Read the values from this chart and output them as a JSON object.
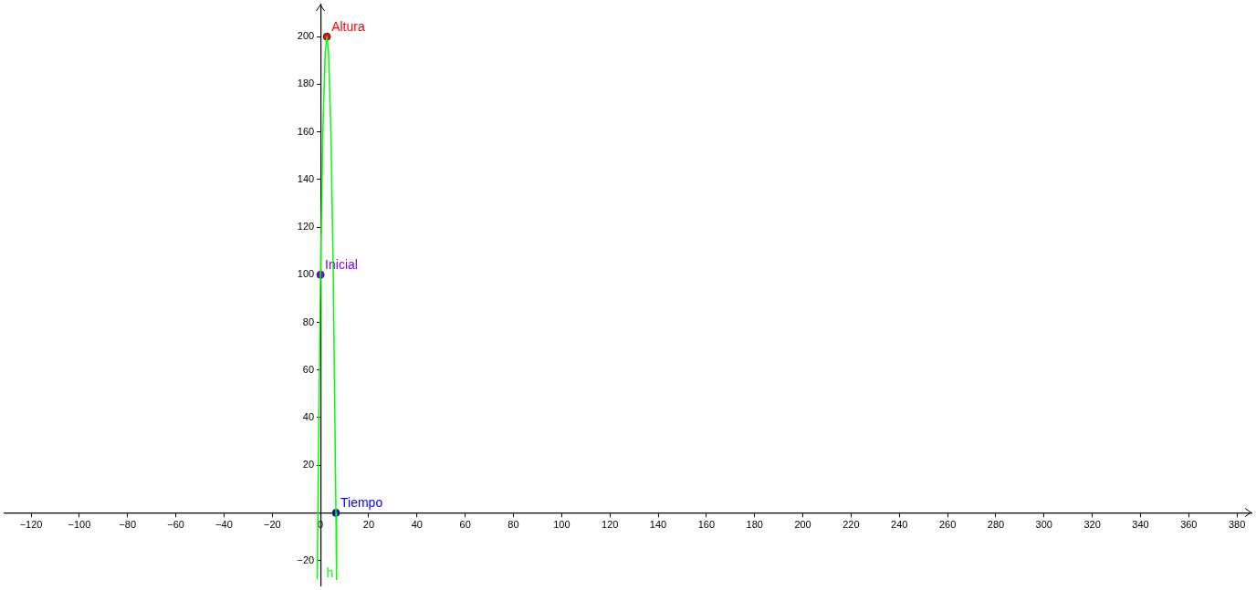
{
  "chart_data": {
    "type": "line",
    "xlim": [
      -131,
      386
    ],
    "ylim": [
      -30.5,
      213.5
    ],
    "xticks": [
      {
        "value": -120,
        "label": "−120"
      },
      {
        "value": -100,
        "label": "−100"
      },
      {
        "value": -80,
        "label": "−80"
      },
      {
        "value": -60,
        "label": "−60"
      },
      {
        "value": -40,
        "label": "−40"
      },
      {
        "value": -20,
        "label": "−20"
      },
      0,
      20,
      40,
      60,
      80,
      100,
      120,
      140,
      160,
      180,
      200,
      220,
      240,
      260,
      280,
      300,
      320,
      340,
      360,
      380
    ],
    "yticks": [
      {
        "value": -20,
        "label": "−20"
      },
      20,
      40,
      60,
      80,
      100,
      120,
      140,
      160,
      180,
      200
    ],
    "grid": false,
    "legend": false,
    "series": [
      {
        "name": "h",
        "color": "#00ff00",
        "marker": "none",
        "x": [
          -1.35,
          -1,
          0,
          1,
          2,
          2.65,
          3.3,
          4.3,
          5.3,
          6.4,
          6.65
        ],
        "values": [
          -27.8,
          10,
          100,
          161,
          194,
          200,
          194,
          161,
          100,
          0,
          -28
        ]
      },
      {
        "name": "Altura",
        "type": "scatter",
        "color": "#ff0000",
        "marker": "circle",
        "x": [
          2.65
        ],
        "values": [
          200
        ]
      },
      {
        "name": "Inicial",
        "type": "scatter",
        "color": "#7f00ff",
        "marker": "circle",
        "x": [
          0
        ],
        "values": [
          100
        ]
      },
      {
        "name": "Tiempo",
        "type": "scatter",
        "color": "#0000ff",
        "marker": "circle",
        "x": [
          6.4
        ],
        "values": [
          0
        ]
      }
    ]
  }
}
